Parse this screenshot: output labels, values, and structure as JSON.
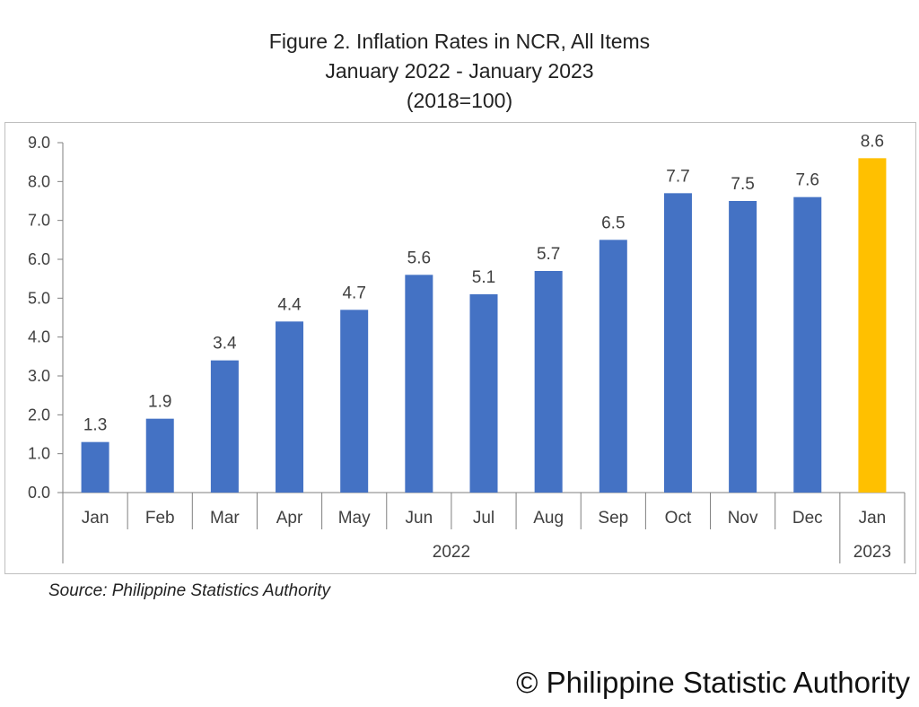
{
  "chart_data": {
    "type": "bar",
    "title": [
      "Figure 2. Inflation Rates in NCR, All Items",
      "January 2022 - January 2023",
      "(2018=100)"
    ],
    "categories": [
      "Jan",
      "Feb",
      "Mar",
      "Apr",
      "May",
      "Jun",
      "Jul",
      "Aug",
      "Sep",
      "Oct",
      "Nov",
      "Dec",
      "Jan"
    ],
    "groups": [
      {
        "label": "2022",
        "count": 12
      },
      {
        "label": "2023",
        "count": 1
      }
    ],
    "values": [
      1.3,
      1.9,
      3.4,
      4.4,
      4.7,
      5.6,
      5.1,
      5.7,
      6.5,
      7.7,
      7.5,
      7.6,
      8.6
    ],
    "data_labels": [
      "1.3",
      "1.9",
      "3.4",
      "4.4",
      "4.7",
      "5.6",
      "5.1",
      "5.7",
      "6.5",
      "7.7",
      "7.5",
      "7.6",
      "8.6"
    ],
    "highlight_index": 12,
    "ylim": [
      0,
      9
    ],
    "yticks": [
      "0.0",
      "1.0",
      "2.0",
      "3.0",
      "4.0",
      "5.0",
      "6.0",
      "7.0",
      "8.0",
      "9.0"
    ],
    "xlabel": "",
    "ylabel": "",
    "grid": false,
    "colors": {
      "bar": "#4472C4",
      "highlight": "#FFC000"
    }
  },
  "source": "Source: Philippine Statistics Authority",
  "watermark": "© Philippine Statistic Authority"
}
